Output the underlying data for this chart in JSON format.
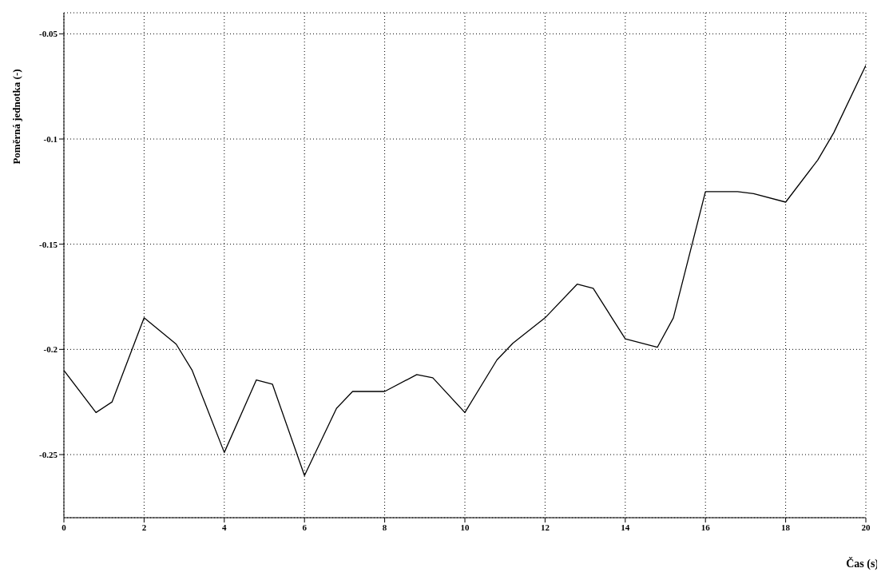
{
  "chart_data": {
    "type": "line",
    "xlabel": "Čas (s)",
    "ylabel": "Poměrná jednotka (-)",
    "x": [
      0,
      0.8,
      1.2,
      2,
      2.8,
      3.2,
      4,
      4.8,
      5.2,
      6,
      6.8,
      7.2,
      8,
      8.8,
      9.2,
      10,
      10.8,
      11.2,
      12,
      12.8,
      13.2,
      14,
      14.8,
      15.2,
      16,
      16.8,
      17.2,
      18,
      18.8,
      19.2,
      20
    ],
    "series": [
      {
        "color": "#000000",
        "values": [
          -0.21,
          -0.23,
          -0.225,
          -0.185,
          -0.1975,
          -0.21,
          -0.249,
          -0.2145,
          -0.2165,
          -0.26,
          -0.228,
          -0.22,
          -0.22,
          -0.212,
          -0.2135,
          -0.23,
          -0.205,
          -0.197,
          -0.185,
          -0.169,
          -0.171,
          -0.195,
          -0.199,
          -0.185,
          -0.125,
          -0.125,
          -0.126,
          -0.13,
          -0.11,
          -0.097,
          -0.065
        ]
      }
    ],
    "xlim": [
      0,
      20
    ],
    "xticks": [
      0,
      2,
      4,
      6,
      8,
      10,
      12,
      14,
      16,
      18,
      20
    ],
    "ylim": [
      -0.28,
      -0.04
    ],
    "yticks": [
      -0.25,
      -0.2,
      -0.15,
      -0.1,
      -0.05
    ],
    "grid": true,
    "legend": false,
    "marker": "none",
    "line_style": "solid"
  }
}
